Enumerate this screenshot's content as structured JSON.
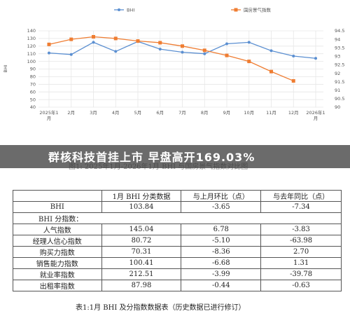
{
  "chart_data": {
    "type": "line",
    "x": [
      "2025年1\n月",
      "2月",
      "3月",
      "4月",
      "5月",
      "6月",
      "7月",
      "8月",
      "9月",
      "10月",
      "11月",
      "12月",
      "2026年1\n月"
    ],
    "legend_position": "top",
    "y_left": {
      "ticks": [
        "140",
        "130",
        "120",
        "110",
        "100",
        "90",
        "80",
        "70",
        "60",
        "50",
        "40"
      ],
      "range": [
        40,
        140
      ],
      "label": "BHI"
    },
    "y_right": {
      "ticks": [
        "94.5",
        "94",
        "93.5",
        "93",
        "92.5",
        "92",
        "91.5",
        "91",
        "90.5",
        "90"
      ],
      "range": [
        90,
        94.5
      ]
    },
    "series": [
      {
        "name": "BHI",
        "axis": "left",
        "color": "#5b8fd1",
        "values": [
          111,
          109,
          125,
          113,
          126,
          116,
          112,
          110,
          123,
          125,
          114,
          107,
          104
        ]
      },
      {
        "name": "国房景气指数",
        "axis": "right",
        "color": "#ef7d32",
        "values": [
          93.7,
          94.0,
          94.15,
          94.05,
          93.9,
          93.8,
          93.6,
          93.35,
          93.05,
          92.7,
          92.1,
          91.55,
          null
        ]
      }
    ]
  },
  "banner": {
    "text": "群核科技首挂上市 早盘高开169.03%"
  },
  "figure_caption": "图1: 2025年1月-2026年1月 BHI 与国房景气指数对比图",
  "table": {
    "headers": [
      "",
      "1月 BHI 分类数据",
      "与上月环比（点）",
      "与去年同比（点）"
    ],
    "bhi_row": [
      "BHI",
      "103.84",
      "-3.65",
      "-7.34"
    ],
    "sub_header": "BHI 分指数：",
    "rows": [
      [
        "人气指数",
        "145.04",
        "6.78",
        "-3.83"
      ],
      [
        "经理人信心指数",
        "80.72",
        "-5.10",
        "-63.98"
      ],
      [
        "购买力指数",
        "70.31",
        "-8.36",
        "2.70"
      ],
      [
        "销售能力指数",
        "100.41",
        "-6.68",
        "1.31"
      ],
      [
        "就业率指数",
        "212.51",
        "-3.99",
        "-39.78"
      ],
      [
        "出租率指数",
        "87.98",
        "-0.44",
        "-0.63"
      ]
    ],
    "caption": "表1:1月 BHI 及分指数数据表（历史数据已进行修订）"
  },
  "colors": {
    "banner_bg": "#464646",
    "grid": "#e6e6e6"
  }
}
